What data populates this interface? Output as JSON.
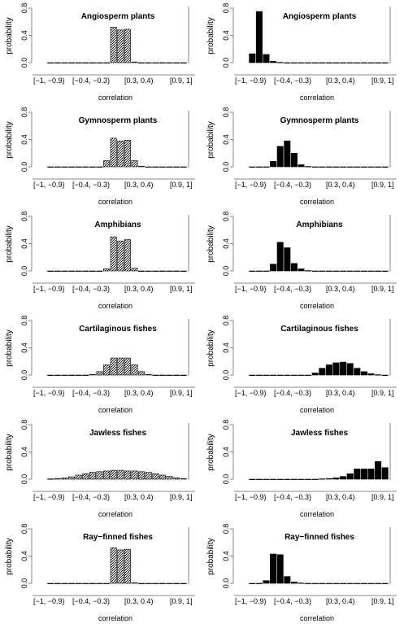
{
  "chart_data": [
    {
      "type": "bar",
      "title": "Angiosperm plants",
      "ylabel": "probability",
      "xlabel": "correlation",
      "style": "hatched",
      "ylim": [
        0,
        0.8
      ],
      "yticks": [
        "0.0",
        "0.4",
        "0.8"
      ],
      "xticklabels": [
        "[−1, −0.9)",
        "[−0.4, −0.3)",
        "[0.3, 0.4)",
        "[0.9, 1]"
      ],
      "values": [
        0,
        0,
        0,
        0,
        0,
        0,
        0,
        0,
        0,
        0.52,
        0.48,
        0.49,
        0.01,
        0,
        0,
        0,
        0,
        0,
        0,
        0
      ]
    },
    {
      "type": "bar",
      "title": "Angiosperm plants",
      "ylabel": "probability",
      "xlabel": "correlation",
      "style": "solid",
      "ylim": [
        0,
        0.8
      ],
      "yticks": [
        "0.0",
        "0.4",
        "0.8"
      ],
      "xticklabels": [
        "[−1, −0.9)",
        "[−0.4, −0.3)",
        "[0.3, 0.4)",
        "[0.9, 1]"
      ],
      "values": [
        0.13,
        0.75,
        0.12,
        0.02,
        0.005,
        0,
        0,
        0,
        0,
        0,
        0,
        0,
        0,
        0,
        0,
        0,
        0,
        0,
        0,
        0
      ]
    },
    {
      "type": "bar",
      "title": "Gymnosperm plants",
      "ylabel": "probability",
      "xlabel": "correlation",
      "style": "hatched",
      "ylim": [
        0,
        0.8
      ],
      "yticks": [
        "0.0",
        "0.4",
        "0.8"
      ],
      "xticklabels": [
        "[−1, −0.9)",
        "[−0.4, −0.3)",
        "[0.3, 0.4)",
        "[0.9, 1]"
      ],
      "values": [
        0,
        0,
        0,
        0,
        0,
        0,
        0,
        0,
        0.09,
        0.42,
        0.38,
        0.39,
        0.09,
        0.01,
        0,
        0,
        0,
        0,
        0,
        0
      ]
    },
    {
      "type": "bar",
      "title": "Gymnosperm plants",
      "ylabel": "probability",
      "xlabel": "correlation",
      "style": "solid",
      "ylim": [
        0,
        0.8
      ],
      "yticks": [
        "0.0",
        "0.4",
        "0.8"
      ],
      "xticklabels": [
        "[−1, −0.9)",
        "[−0.4, −0.3)",
        "[0.3, 0.4)",
        "[0.9, 1]"
      ],
      "values": [
        0,
        0,
        0,
        0.08,
        0.3,
        0.38,
        0.2,
        0.03,
        0.005,
        0,
        0,
        0,
        0,
        0,
        0,
        0,
        0,
        0,
        0,
        0
      ]
    },
    {
      "type": "bar",
      "title": "Amphibians",
      "ylabel": "probability",
      "xlabel": "correlation",
      "style": "hatched",
      "ylim": [
        0,
        0.8
      ],
      "yticks": [
        "0.0",
        "0.4",
        "0.8"
      ],
      "xticklabels": [
        "[−1, −0.9)",
        "[−0.4, −0.3)",
        "[0.3, 0.4)",
        "[0.9, 1]"
      ],
      "values": [
        0,
        0,
        0,
        0,
        0,
        0,
        0,
        0,
        0.03,
        0.5,
        0.44,
        0.46,
        0.04,
        0,
        0,
        0,
        0,
        0,
        0,
        0
      ]
    },
    {
      "type": "bar",
      "title": "Amphibians",
      "ylabel": "probability",
      "xlabel": "correlation",
      "style": "solid",
      "ylim": [
        0,
        0.8
      ],
      "yticks": [
        "0.0",
        "0.4",
        "0.8"
      ],
      "xticklabels": [
        "[−1, −0.9)",
        "[−0.4, −0.3)",
        "[0.3, 0.4)",
        "[0.9, 1]"
      ],
      "values": [
        0,
        0,
        0,
        0.1,
        0.42,
        0.34,
        0.11,
        0.03,
        0.005,
        0,
        0,
        0,
        0,
        0,
        0,
        0,
        0,
        0,
        0,
        0
      ]
    },
    {
      "type": "bar",
      "title": "Cartilaginous fishes",
      "ylabel": "probability",
      "xlabel": "correlation",
      "style": "hatched",
      "ylim": [
        0,
        0.8
      ],
      "yticks": [
        "0.0",
        "0.4",
        "0.8"
      ],
      "xticklabels": [
        "[−1, −0.9)",
        "[−0.4, −0.3)",
        "[0.3, 0.4)",
        "[0.9, 1]"
      ],
      "values": [
        0,
        0,
        0,
        0,
        0,
        0,
        0.01,
        0.05,
        0.15,
        0.25,
        0.25,
        0.25,
        0.15,
        0.05,
        0.01,
        0,
        0,
        0,
        0,
        0
      ]
    },
    {
      "type": "bar",
      "title": "Cartilaginous fishes",
      "ylabel": "probability",
      "xlabel": "correlation",
      "style": "solid",
      "ylim": [
        0,
        0.8
      ],
      "yticks": [
        "0.0",
        "0.4",
        "0.8"
      ],
      "xticklabels": [
        "[−1, −0.9)",
        "[−0.4, −0.3)",
        "[0.3, 0.4)",
        "[0.9, 1]"
      ],
      "values": [
        0,
        0,
        0,
        0,
        0,
        0,
        0,
        0,
        0,
        0.03,
        0.1,
        0.15,
        0.18,
        0.19,
        0.17,
        0.1,
        0.05,
        0.02,
        0.005,
        0
      ]
    },
    {
      "type": "bar",
      "title": "Jawless fishes",
      "ylabel": "probability",
      "xlabel": "correlation",
      "style": "hatched",
      "ylim": [
        0,
        0.8
      ],
      "yticks": [
        "0.0",
        "0.4",
        "0.8"
      ],
      "xticklabels": [
        "[−1, −0.9)",
        "[−0.4, −0.3)",
        "[0.3, 0.4)",
        "[0.9, 1]"
      ],
      "values": [
        0.005,
        0.01,
        0.02,
        0.035,
        0.06,
        0.08,
        0.1,
        0.11,
        0.12,
        0.13,
        0.13,
        0.12,
        0.12,
        0.11,
        0.1,
        0.08,
        0.06,
        0.04,
        0.02,
        0.01
      ]
    },
    {
      "type": "bar",
      "title": "Jawless fishes",
      "ylabel": "probability",
      "xlabel": "correlation",
      "style": "solid",
      "ylim": [
        0,
        0.8
      ],
      "yticks": [
        "0.0",
        "0.4",
        "0.8"
      ],
      "xticklabels": [
        "[−1, −0.9)",
        "[−0.4, −0.3)",
        "[0.3, 0.4)",
        "[0.9, 1]"
      ],
      "values": [
        0,
        0,
        0,
        0,
        0,
        0,
        0,
        0,
        0,
        0,
        0.005,
        0.01,
        0.02,
        0.04,
        0.08,
        0.15,
        0.15,
        0.15,
        0.26,
        0.17
      ]
    },
    {
      "type": "bar",
      "title": "Ray−finned fishes",
      "ylabel": "probability",
      "xlabel": "correlation",
      "style": "hatched",
      "ylim": [
        0,
        0.8
      ],
      "yticks": [
        "0.0",
        "0.4",
        "0.8"
      ],
      "xticklabels": [
        "[−1, −0.9)",
        "[−0.4, −0.3)",
        "[0.3, 0.4)",
        "[0.9, 1]"
      ],
      "values": [
        0,
        0,
        0,
        0,
        0,
        0,
        0,
        0,
        0,
        0.52,
        0.49,
        0.5,
        0.01,
        0,
        0,
        0,
        0,
        0,
        0,
        0
      ]
    },
    {
      "type": "bar",
      "title": "Ray−finned fishes",
      "ylabel": "probability",
      "xlabel": "correlation",
      "style": "solid",
      "ylim": [
        0,
        0.8
      ],
      "yticks": [
        "0.0",
        "0.4",
        "0.8"
      ],
      "xticklabels": [
        "[−1, −0.9)",
        "[−0.4, −0.3)",
        "[0.3, 0.4)",
        "[0.9, 1]"
      ],
      "values": [
        0,
        0,
        0.04,
        0.43,
        0.42,
        0.1,
        0.02,
        0.005,
        0,
        0,
        0,
        0,
        0,
        0,
        0,
        0,
        0,
        0,
        0,
        0
      ]
    }
  ]
}
